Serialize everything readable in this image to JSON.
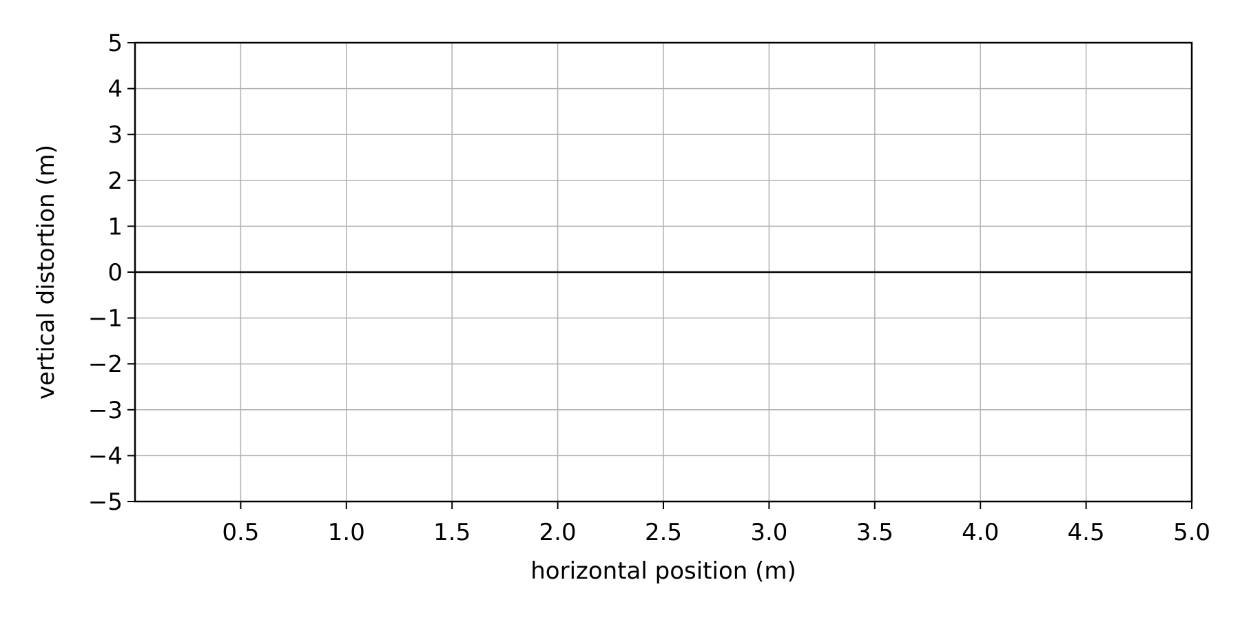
{
  "chart_data": {
    "type": "line",
    "title": "",
    "xlabel": "horizontal position (m)",
    "ylabel": "vertical distortion (m)",
    "xlim": [
      0,
      5.0
    ],
    "ylim": [
      -5,
      5
    ],
    "x_ticks": [
      0.5,
      1.0,
      1.5,
      2.0,
      2.5,
      3.0,
      3.5,
      4.0,
      4.5,
      5.0
    ],
    "x_tick_labels": [
      "0.5",
      "1.0",
      "1.5",
      "2.0",
      "2.5",
      "3.0",
      "3.5",
      "4.0",
      "4.5",
      "5.0"
    ],
    "y_ticks": [
      5,
      4,
      3,
      2,
      1,
      0,
      -1,
      -2,
      -3,
      -4,
      -5
    ],
    "y_tick_labels": [
      "5",
      "4",
      "3",
      "2",
      "1",
      "0",
      "−1",
      "−2",
      "−3",
      "−4",
      "−5"
    ],
    "grid": true,
    "series": [
      {
        "x": [
          0,
          5.0
        ],
        "y": [
          0,
          0
        ]
      }
    ],
    "colors": {
      "grid": "#b0b0b0",
      "axis": "#000000",
      "series": "#000000",
      "background": "#ffffff"
    }
  }
}
